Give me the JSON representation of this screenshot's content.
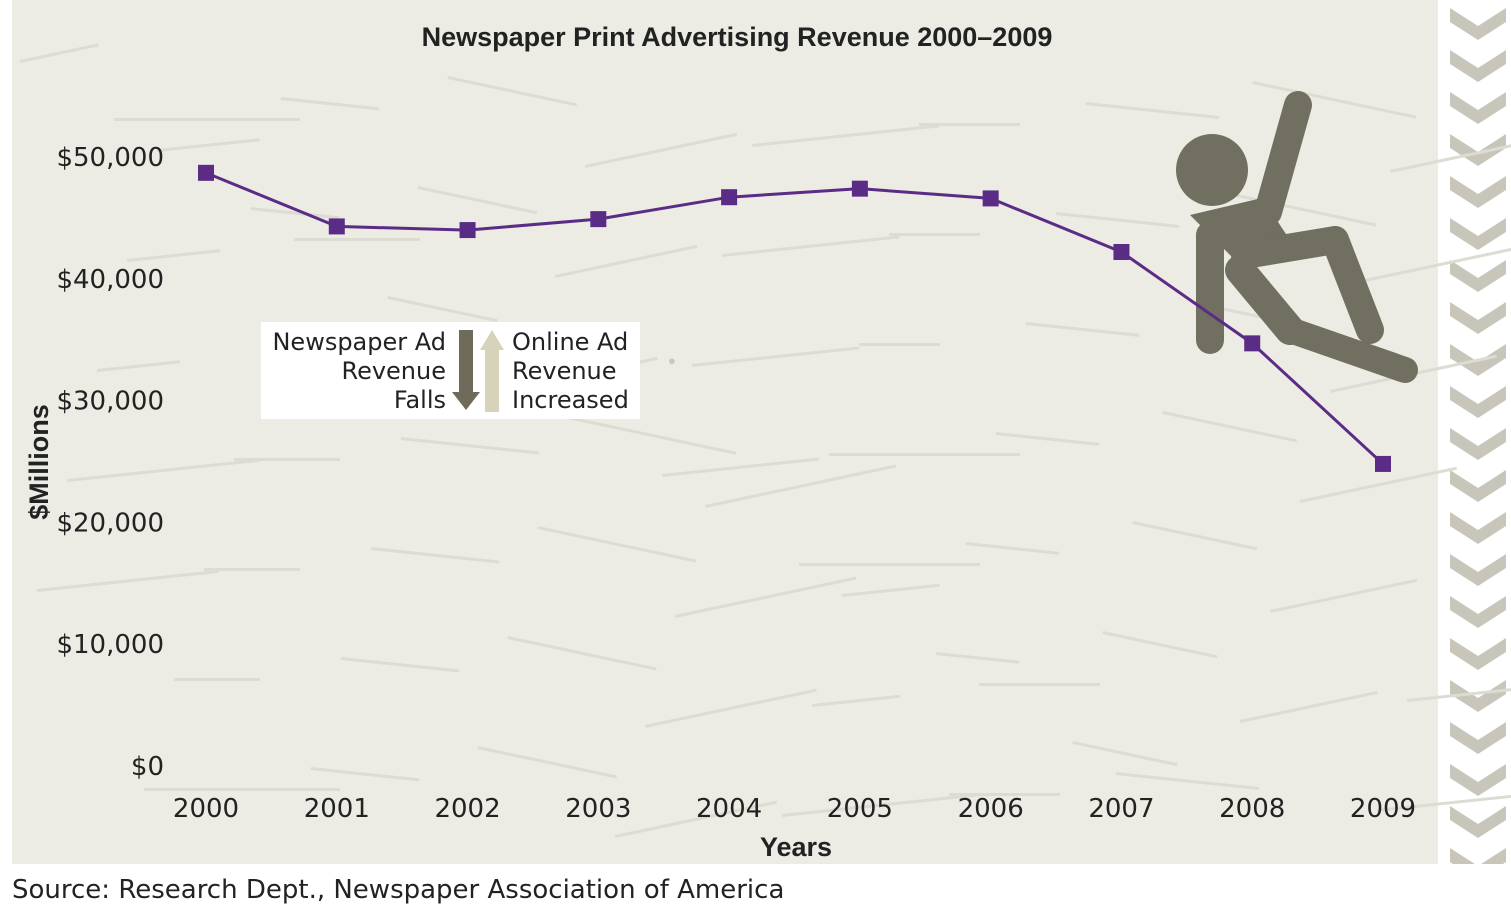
{
  "chart_data": {
    "type": "line",
    "title": "Newspaper Print Advertising Revenue 2000–2009",
    "xlabel": "Years",
    "ylabel": "$Millions",
    "categories": [
      "2000",
      "2001",
      "2002",
      "2003",
      "2004",
      "2005",
      "2006",
      "2007",
      "2008",
      "2009"
    ],
    "values": [
      48700,
      44300,
      44000,
      44900,
      46700,
      47400,
      46600,
      42200,
      34700,
      24800
    ],
    "ylim": [
      0,
      50000
    ],
    "yticks": [
      0,
      10000,
      20000,
      30000,
      40000,
      50000
    ],
    "ytick_labels": [
      "$0",
      "$10,000",
      "$20,000",
      "$30,000",
      "$40,000",
      "$50,000"
    ],
    "grid": false,
    "series_color": "#5b2c86",
    "legend": {
      "placement": "center-left",
      "falls_lines": [
        "Newspaper Ad",
        "Revenue",
        "Falls"
      ],
      "increased_lines": [
        "Online Ad",
        "Revenue",
        "Increased"
      ],
      "down_arrow_color": "#6e6b5a",
      "up_arrow_color": "#d6d3ba"
    },
    "source": "Source: Research Dept., Newspaper Association of America"
  },
  "decorations": {
    "panel_color": "#ecebe4",
    "figure_icon": "falling-person-icon",
    "figure_color": "#716f5f",
    "chevron_color": "#c8c6bb"
  }
}
